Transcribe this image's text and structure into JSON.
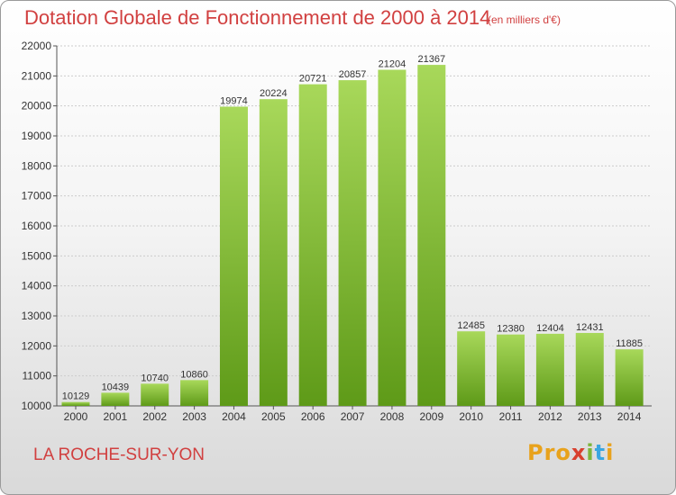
{
  "title": "Dotation Globale de Fonctionnement de 2000 à 2014",
  "subtitle": "(en milliers d'€)",
  "place": "LA ROCHE-SUR-YON",
  "logo": [
    "Pro",
    "x",
    "i",
    "t",
    "i"
  ],
  "colors": {
    "title": "#d14040",
    "bar_light": "#a8d85a",
    "bar_dark": "#5e9a18",
    "grid": "#cccccc"
  },
  "chart_data": {
    "type": "bar",
    "categories": [
      "2000",
      "2001",
      "2002",
      "2003",
      "2004",
      "2005",
      "2006",
      "2007",
      "2008",
      "2009",
      "2010",
      "2011",
      "2012",
      "2013",
      "2014"
    ],
    "values": [
      10129,
      10439,
      10740,
      10860,
      19974,
      20224,
      20721,
      20857,
      21204,
      21367,
      12485,
      12380,
      12404,
      12431,
      11885
    ],
    "data_labels": [
      "10129",
      "10439",
      "10740",
      "10860",
      "19974",
      "20224",
      "20721",
      "20857",
      "21204",
      "21367",
      "12485",
      "12380",
      "12404",
      "12431",
      "11885"
    ],
    "yticks": [
      10000,
      11000,
      12000,
      13000,
      14000,
      15000,
      16000,
      17000,
      18000,
      19000,
      20000,
      21000,
      22000
    ],
    "ytick_labels": [
      "10000",
      "11000",
      "12000",
      "13000",
      "14000",
      "15000",
      "16000",
      "17000",
      "18000",
      "19000",
      "20000",
      "21000",
      "22000"
    ],
    "ylim": [
      10000,
      22000
    ],
    "title": "Dotation Globale de Fonctionnement de 2000 à 2014",
    "xlabel": "",
    "ylabel": "",
    "grid": true,
    "legend": false
  }
}
